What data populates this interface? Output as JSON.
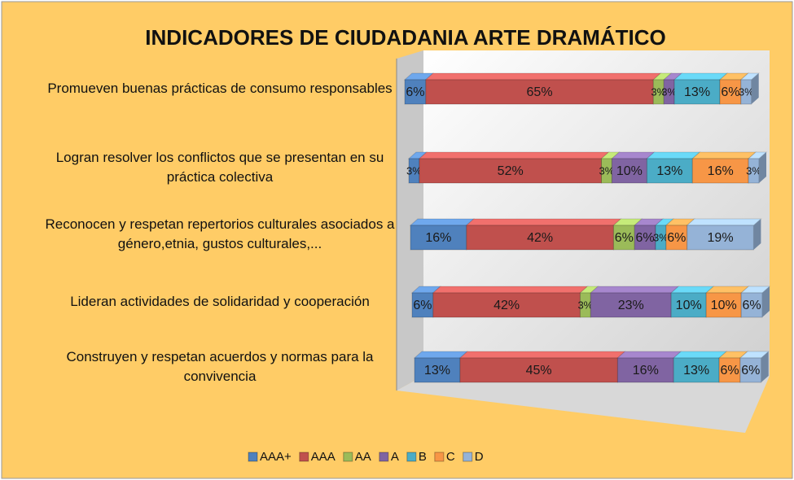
{
  "chart_data": {
    "type": "bar",
    "stacked": true,
    "orientation": "horizontal",
    "title": "INDICADORES DE CIUDADANIA ARTE DRAMÁTICO",
    "categories": [
      "Promueven buenas prácticas de consumo responsables",
      "Logran resolver los conflictos que se presentan en su práctica colectiva",
      "Reconocen y respetan repertorios culturales asociados a género,etnia, gustos culturales,...",
      "Lideran actividades de solidaridad y cooperación",
      "Construyen y respetan acuerdos y normas para la convivencia"
    ],
    "xlim": [
      0,
      100
    ],
    "series": [
      {
        "name": "AAA+",
        "color": "#4f81bd",
        "values": [
          6,
          3,
          16,
          6,
          13
        ],
        "value_labels": [
          "6%",
          "3%",
          "16%",
          "6%",
          "13%"
        ]
      },
      {
        "name": "AAA",
        "color": "#c0504d",
        "values": [
          65,
          52,
          42,
          42,
          45
        ],
        "value_labels": [
          "65%",
          "52%",
          "42%",
          "42%",
          "45%"
        ]
      },
      {
        "name": "AA",
        "color": "#9bbb59",
        "values": [
          3,
          3,
          6,
          3,
          null
        ],
        "value_labels": [
          "3%",
          "3%",
          "6%",
          "3%",
          null
        ]
      },
      {
        "name": "A",
        "color": "#8064a2",
        "values": [
          3,
          10,
          6,
          23,
          16
        ],
        "value_labels": [
          "3%",
          "10%",
          "6%",
          "23%",
          "16%"
        ]
      },
      {
        "name": "B",
        "color": "#4bacc6",
        "values": [
          13,
          13,
          3,
          10,
          13
        ],
        "value_labels": [
          "13%",
          "13%",
          "3%",
          "10%",
          "13%"
        ]
      },
      {
        "name": "C",
        "color": "#f79646",
        "values": [
          6,
          16,
          6,
          10,
          6
        ],
        "value_labels": [
          "6%",
          "16%",
          "6%",
          "10%",
          "6%"
        ]
      },
      {
        "name": "D",
        "color": "#95b3d7",
        "values": [
          3,
          3,
          19,
          6,
          6
        ],
        "value_labels": [
          "3%",
          "3%",
          "19%",
          "6%",
          "6%"
        ]
      }
    ]
  }
}
